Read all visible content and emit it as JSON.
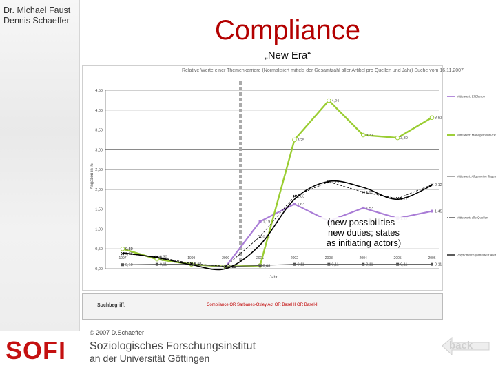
{
  "author": {
    "line1": "Dr. Michael Faust",
    "line2": "Dennis Schaeffer"
  },
  "slide": {
    "title": "Compliance",
    "subtitle": "„New Era“"
  },
  "annotation": {
    "line1": "(new possibilities -",
    "line2": "new duties; states",
    "line3": "as initiating actors)"
  },
  "footer": {
    "copyright": "© 2007 D.Schaeffer",
    "logo": "SOFI",
    "institute_line1": "Soziologisches Forschungsinstitut",
    "institute_line2": "an der Universität Göttingen",
    "back_label": "back"
  },
  "colors": {
    "title": "#b30000",
    "purple": "#a97cd6",
    "green": "#9acd32",
    "black": "#000000",
    "grey": "#555555"
  },
  "chart_data": {
    "type": "line",
    "x": [
      "1997",
      "1998",
      "1999",
      "2000",
      "2001",
      "2002",
      "2003",
      "2004",
      "2005",
      "2006"
    ],
    "ylim": [
      0,
      4.5
    ],
    "y_ticks": [
      "0,00",
      "0,50",
      "1,00",
      "1,50",
      "2,00",
      "2,50",
      "3,00",
      "3,50",
      "4,00",
      "4,50"
    ],
    "ylabel": "Angaben in %",
    "xlabel": "Jahr",
    "chart_title": "Relative Werte einer Themenkarriere (Normalisiert mittels der Gesamtzahl aller Artikel pro Quellen und Jahr) Suche vom 16.11.2007",
    "search_label": "Suchbegriff:",
    "search_term": "Compliance OR Sarbanes-Oxley Act OR Basel II OR Basel-II",
    "series": [
      {
        "name": "Mittelwert: El Blanco",
        "color": "#a97cd6",
        "values": [
          0.5,
          0.24,
          0.11,
          0.05,
          1.19,
          1.63,
          1.2,
          1.53,
          1.27,
          1.45
        ],
        "labels": [
          "0,50",
          "0,24",
          "0,11",
          "0,05",
          "1,19",
          "1,63",
          "1,20",
          "1,53",
          "1,27",
          "1,45"
        ]
      },
      {
        "name": "Mittelwert: Management Presse",
        "color": "#9acd32",
        "values": [
          0.5,
          0.24,
          0.11,
          0.05,
          0.08,
          3.25,
          4.24,
          3.37,
          3.3,
          3.81
        ],
        "labels": [
          "0,50",
          "0,24",
          "0,11",
          "0,05",
          "0,08",
          "3,25",
          "4,24",
          "3,37",
          "3,30",
          "3,81"
        ]
      },
      {
        "name": "Mittelwert: Allgemeine Tages- und Wochenpresse",
        "color": "#555555",
        "values": [
          0.1,
          0.11,
          0.11,
          0.05,
          0.08,
          0.11,
          0.11,
          0.11,
          0.11,
          0.11
        ],
        "labels": [
          "0,10",
          "0,11",
          "0,11",
          "0,05",
          "0,08",
          "0,11",
          "0,11",
          "0,11",
          "0,11",
          "0,11"
        ]
      },
      {
        "name": "Mittelwert: alle Quellen",
        "color": "#000000",
        "values": [
          0.38,
          0.3,
          0.13,
          0.06,
          0.81,
          1.83,
          2.19,
          1.93,
          1.77,
          2.12
        ],
        "labels": [
          "0,38",
          "0,30",
          "0,13",
          "0,06",
          "0,81",
          "1,83",
          "2,19",
          "1,93",
          "1,77",
          "2,12"
        ]
      },
      {
        "name": "Polynomisch (Mittelwert aller Quellen)",
        "color": "#000000",
        "values": [
          0.4,
          0.28,
          0.1,
          0.0,
          0.6,
          1.75,
          2.2,
          2.05,
          1.75,
          2.1
        ],
        "labels": []
      }
    ]
  }
}
